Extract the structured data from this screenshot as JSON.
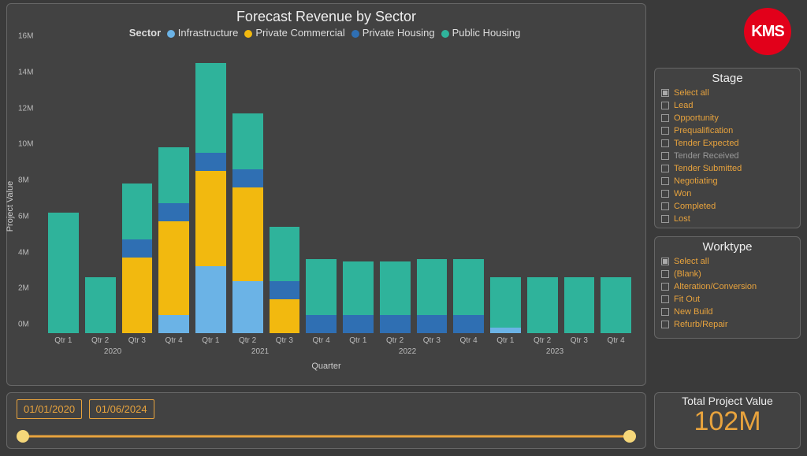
{
  "brand": {
    "logo_text": "KMS",
    "logo_bg": "#e2001a",
    "logo_fg": "#ffffff"
  },
  "colors": {
    "panel_bg": "#424242",
    "page_bg": "#3a3a3a",
    "accent": "#e8a33d",
    "text": "#dddddd",
    "muted": "#999999"
  },
  "chart": {
    "type": "stacked-bar",
    "title": "Forecast Revenue by Sector",
    "legend_label": "Sector",
    "x_axis_title": "Quarter",
    "y_axis_title": "Project Value",
    "ylim": [
      0,
      16
    ],
    "ytick_step": 2,
    "ytick_suffix": "M",
    "series": [
      {
        "key": "infrastructure",
        "label": "Infrastructure",
        "color": "#6bb3e6"
      },
      {
        "key": "private_commercial",
        "label": "Private Commercial",
        "color": "#f2b90f"
      },
      {
        "key": "private_housing",
        "label": "Private Housing",
        "color": "#2f6fb3"
      },
      {
        "key": "public_housing",
        "label": "Public Housing",
        "color": "#2fb39b"
      }
    ],
    "categories": [
      {
        "qtr": "Qtr 1",
        "year": "2020"
      },
      {
        "qtr": "Qtr 2",
        "year": "2020"
      },
      {
        "qtr": "Qtr 3",
        "year": "2020"
      },
      {
        "qtr": "Qtr 4",
        "year": "2020"
      },
      {
        "qtr": "Qtr 1",
        "year": "2021"
      },
      {
        "qtr": "Qtr 2",
        "year": "2021"
      },
      {
        "qtr": "Qtr 3",
        "year": "2021"
      },
      {
        "qtr": "Qtr 4",
        "year": "2021"
      },
      {
        "qtr": "Qtr 1",
        "year": "2022"
      },
      {
        "qtr": "Qtr 2",
        "year": "2022"
      },
      {
        "qtr": "Qtr 3",
        "year": "2022"
      },
      {
        "qtr": "Qtr 4",
        "year": "2022"
      },
      {
        "qtr": "Qtr 1",
        "year": "2023"
      },
      {
        "qtr": "Qtr 2",
        "year": "2023"
      },
      {
        "qtr": "Qtr 3",
        "year": "2023"
      },
      {
        "qtr": "Qtr 4",
        "year": "2023"
      }
    ],
    "year_labels": [
      {
        "text": "2020",
        "left_pct": 11.5
      },
      {
        "text": "2021",
        "left_pct": 36.5
      },
      {
        "text": "2022",
        "left_pct": 61.5
      },
      {
        "text": "2023",
        "left_pct": 86.5
      }
    ],
    "data": {
      "infrastructure": [
        0.0,
        0.0,
        0.0,
        1.0,
        3.7,
        2.9,
        0.0,
        0.0,
        0.0,
        0.0,
        0.0,
        0.0,
        0.3,
        0.0,
        0.0,
        0.0
      ],
      "private_commercial": [
        0.0,
        0.0,
        4.2,
        5.2,
        5.3,
        5.2,
        1.9,
        0.0,
        0.0,
        0.0,
        0.0,
        0.0,
        0.0,
        0.0,
        0.0,
        0.0
      ],
      "private_housing": [
        0.0,
        0.0,
        1.0,
        1.0,
        1.0,
        1.0,
        1.0,
        1.0,
        1.0,
        1.0,
        1.0,
        1.0,
        0.0,
        0.0,
        0.0,
        0.0
      ],
      "public_housing": [
        6.7,
        3.1,
        3.1,
        3.1,
        5.0,
        3.1,
        3.0,
        3.1,
        3.0,
        3.0,
        3.1,
        3.1,
        2.8,
        3.1,
        3.1,
        3.1
      ]
    }
  },
  "stage_filter": {
    "title": "Stage",
    "items": [
      {
        "label": "Select all",
        "selected": true
      },
      {
        "label": "Lead",
        "selected": false
      },
      {
        "label": "Opportunity",
        "selected": false
      },
      {
        "label": "Prequalification",
        "selected": false
      },
      {
        "label": "Tender Expected",
        "selected": false
      },
      {
        "label": "Tender Received",
        "selected": false,
        "muted": true
      },
      {
        "label": "Tender Submitted",
        "selected": false
      },
      {
        "label": "Negotiating",
        "selected": false
      },
      {
        "label": "Won",
        "selected": false
      },
      {
        "label": "Completed",
        "selected": false
      },
      {
        "label": "Lost",
        "selected": false
      }
    ]
  },
  "worktype_filter": {
    "title": "Worktype",
    "items": [
      {
        "label": "Select all",
        "selected": true
      },
      {
        "label": "(Blank)",
        "selected": false
      },
      {
        "label": "Alteration/Conversion",
        "selected": false
      },
      {
        "label": "Fit Out",
        "selected": false
      },
      {
        "label": "New Build",
        "selected": false
      },
      {
        "label": "Refurb/Repair",
        "selected": false
      }
    ]
  },
  "date_range": {
    "from": "01/01/2020",
    "to": "01/06/2024"
  },
  "total": {
    "label": "Total Project Value",
    "value": "102M"
  }
}
